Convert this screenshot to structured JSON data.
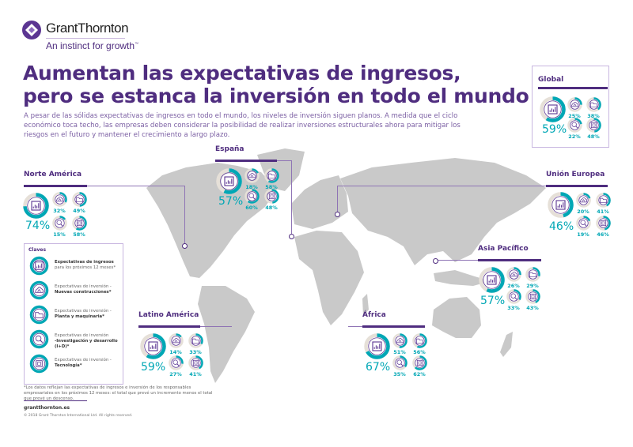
{
  "brand": {
    "name": "GrantThornton",
    "tagline": "An instinct for growth",
    "trademark": "™",
    "color": "#4f2d7f",
    "accent": "#00a7b5"
  },
  "title_line1": "Aumentan las expectativas de ingresos,",
  "title_line2": "pero se estanca la inversión en todo el mundo",
  "intro": "A pesar de las sólidas expectativas de ingresos en todo el mundo, los niveles de inversión siguen planos. A medida que el ciclo económico toca techo, las empresas deben considerar la posibilidad de realizar inversiones estructurales ahora para mitigar los riesgos en el futuro y mantener el crecimiento a largo plazo.",
  "regions": {
    "global": {
      "name": "Global",
      "revenue": "59%",
      "construction": "25%",
      "plant": "38%",
      "rd": "22%",
      "tech": "48%"
    },
    "north_america": {
      "name": "Norte América",
      "revenue": "74%",
      "construction": "32%",
      "plant": "49%",
      "rd": "15%",
      "tech": "58%"
    },
    "spain": {
      "name": "España",
      "revenue": "57%",
      "construction": "18%",
      "plant": "58%",
      "rd": "60%",
      "tech": "48%"
    },
    "eu": {
      "name": "Unión Europea",
      "revenue": "46%",
      "construction": "20%",
      "plant": "41%",
      "rd": "19%",
      "tech": "46%"
    },
    "asia_pacific": {
      "name": "Asia Pacífico",
      "revenue": "57%",
      "construction": "26%",
      "plant": "29%",
      "rd": "33%",
      "tech": "43%"
    },
    "latin_america": {
      "name": "Latino América",
      "revenue": "59%",
      "construction": "14%",
      "plant": "33%",
      "rd": "27%",
      "tech": "41%"
    },
    "africa": {
      "name": "África",
      "revenue": "67%",
      "construction": "51%",
      "plant": "56%",
      "rd": "35%",
      "tech": "62%"
    }
  },
  "key": {
    "title": "Claves",
    "items": [
      {
        "icon": "revenue-chart-icon",
        "line1": "Expectativas de ingresos",
        "line2": "para los próximos 12 meses*"
      },
      {
        "icon": "construction-icon",
        "line1": "Expectativas de inversión -",
        "line2": "Nuevas construcciones*"
      },
      {
        "icon": "plant-machinery-icon",
        "line1": "Expectativas de inversión -",
        "line2": "Planta y maquinaria*"
      },
      {
        "icon": "research-icon",
        "line1": "Expectativas de inversión",
        "line2": "-Investigación y desarrollo (I+D)*"
      },
      {
        "icon": "technology-icon",
        "line1": "Expectativas de inversión -",
        "line2": "Tecnología*"
      }
    ]
  },
  "footnote": "*Los datos reflejan las expectativas de ingresos e inversión de los responsables empresariales en los próximos 12 meses: el total que prevé un incremento menos el total que prevé un descenso.",
  "website": "grantthornton.es",
  "copyright": "© 2018 Grant Thornton International Ltd. All rights reserved."
}
